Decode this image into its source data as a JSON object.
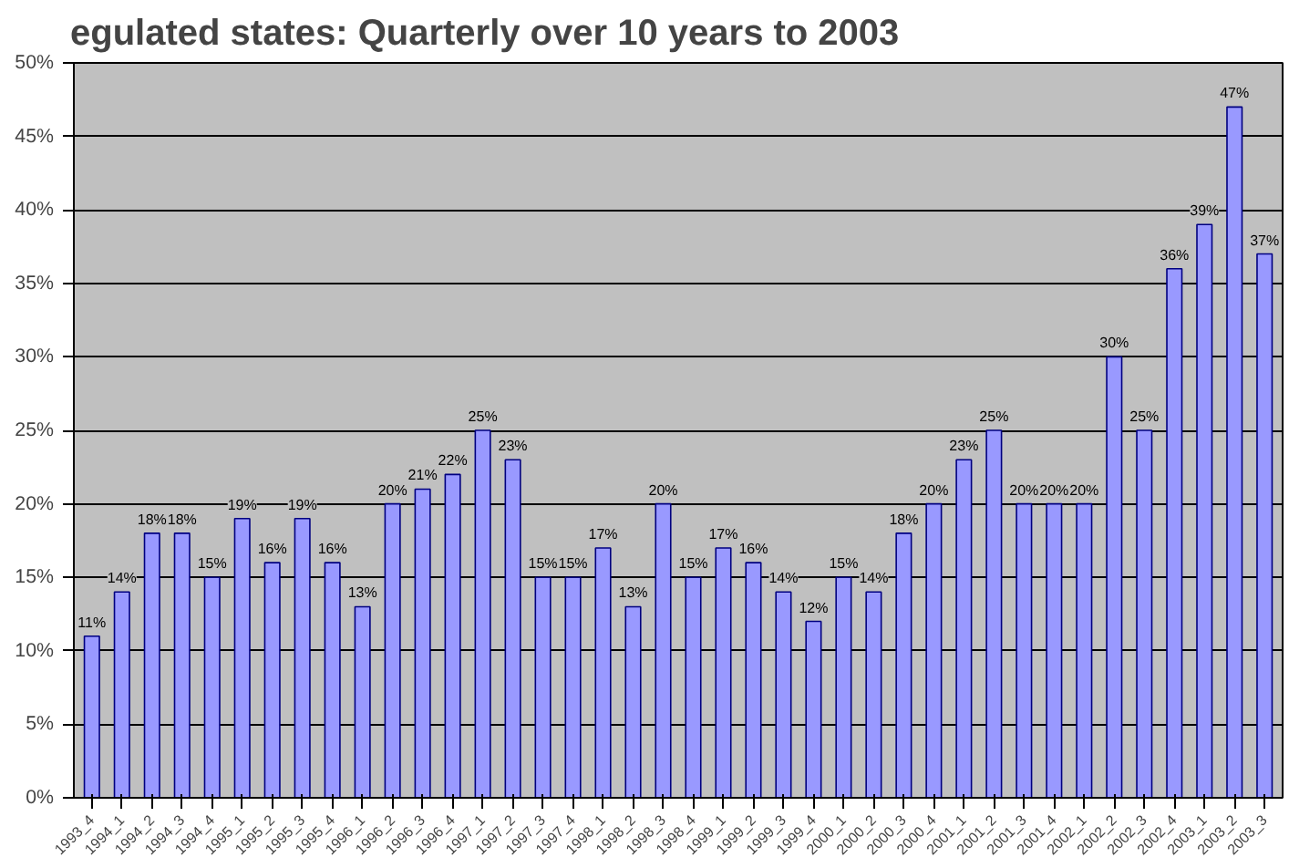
{
  "chart_data": {
    "type": "bar",
    "title": "egulated states: Quarterly over 10 years to 2003",
    "categories": [
      "1993_4",
      "1994_1",
      "1994_2",
      "1994_3",
      "1994_4",
      "1995_1",
      "1995_2",
      "1995_3",
      "1995_4",
      "1996_1",
      "1996_2",
      "1996_3",
      "1996_4",
      "1997_1",
      "1997_2",
      "1997_3",
      "1997_4",
      "1998_1",
      "1998_2",
      "1998_3",
      "1998_4",
      "1999_1",
      "1999_2",
      "1999_3",
      "1999_4",
      "2000_1",
      "2000_2",
      "2000_3",
      "2000_4",
      "2001_1",
      "2001_2",
      "2001_3",
      "2001_4",
      "2002_1",
      "2002_2",
      "2002_3",
      "2002_4",
      "2003_1",
      "2003_2",
      "2003_3"
    ],
    "values": [
      11,
      14,
      18,
      18,
      15,
      19,
      16,
      19,
      16,
      13,
      20,
      21,
      22,
      25,
      23,
      15,
      15,
      17,
      13,
      20,
      15,
      17,
      16,
      14,
      12,
      15,
      14,
      18,
      20,
      23,
      25,
      20,
      20,
      20,
      30,
      25,
      36,
      39,
      47,
      37
    ],
    "value_labels": [
      "11%",
      "14%",
      "18%",
      "18%",
      "15%",
      "19%",
      "16%",
      "19%",
      "16%",
      "13%",
      "20%",
      "21%",
      "22%",
      "25%",
      "23%",
      "15%",
      "15%",
      "17%",
      "13%",
      "20%",
      "15%",
      "17%",
      "16%",
      "14%",
      "12%",
      "15%",
      "14%",
      "18%",
      "20%",
      "23%",
      "25%",
      "20%",
      "20%",
      "20%",
      "30%",
      "25%",
      "36%",
      "39%",
      "47%",
      "37%"
    ],
    "color": "#9999ff",
    "ylim": [
      0,
      50
    ],
    "yticks": [
      {
        "value": 0,
        "label": "0%"
      },
      {
        "value": 5,
        "label": "5%"
      },
      {
        "value": 10,
        "label": "10%"
      },
      {
        "value": 15,
        "label": "15%"
      },
      {
        "value": 20,
        "label": "20%"
      },
      {
        "value": 25,
        "label": "25%"
      },
      {
        "value": 30,
        "label": "30%"
      },
      {
        "value": 35,
        "label": "35%"
      },
      {
        "value": 40,
        "label": "40%"
      },
      {
        "value": 45,
        "label": "45%"
      },
      {
        "value": 50,
        "label": "50%"
      }
    ],
    "grid": "y"
  }
}
